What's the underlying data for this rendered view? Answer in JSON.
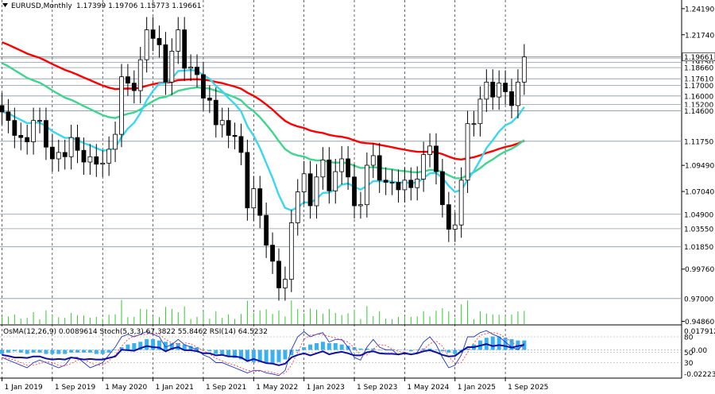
{
  "header": {
    "symbol": "EURUSD,Monthly",
    "ohlc": "1.17399 1.19706 1.15773 1.19661"
  },
  "indicators_label": "OsMA(12,26,9) 0.0089614  Stoch(5,3,3) 67.3822 55.8462  RSI(14) 64.5232",
  "colors": {
    "up": "#ffffff",
    "down": "#000000",
    "grid": "#c9c9c9",
    "ma_red": "#ff0000",
    "ma_green": "#3cd78c",
    "ma_cyan": "#39d7f0",
    "volume": "#32c832",
    "osma": "#39b0f0",
    "stoch_main": "#1e32c8",
    "stoch_signal": "#ff3c3c",
    "rsi": "#1010a0"
  },
  "chart_data": {
    "type": "candlestick",
    "y_range": [
      0.946,
      1.25
    ],
    "x_labels": [
      "1 Jan 2019",
      "1 Sep 2019",
      "1 May 2020",
      "1 Jan 2021",
      "1 Sep 2021",
      "1 May 2022",
      "1 Jan 2023",
      "1 Sep 2023",
      "1 May 2024",
      "1 Jan 2025",
      "1 Sep 2025"
    ],
    "x_label_months": [
      0,
      8,
      16,
      24,
      32,
      40,
      48,
      56,
      64,
      72,
      80
    ],
    "y_ticks": [
      "1.24190",
      "1.21740",
      "1.09490",
      "1.07040",
      "0.99760",
      "0.94860"
    ],
    "y_tick_values": [
      1.2419,
      1.2174,
      1.0949,
      1.0704,
      0.9976,
      0.9486
    ],
    "levels": [
      {
        "label": "1.19551",
        "value": 1.1955
      },
      {
        "label": "1.19150",
        "value": 1.1915
      },
      {
        "label": "1.18660",
        "value": 1.1866
      },
      {
        "label": "1.17610",
        "value": 1.1761
      },
      {
        "label": "1.17000",
        "value": 1.17
      },
      {
        "label": "1.16000",
        "value": 1.16
      },
      {
        "label": "1.15200",
        "value": 1.152
      },
      {
        "label": "1.14600",
        "value": 1.146
      },
      {
        "label": "1.11750",
        "value": 1.1175
      },
      {
        "label": "1.04900",
        "value": 1.049
      },
      {
        "label": "1.03550",
        "value": 1.0355
      },
      {
        "label": "1.01850",
        "value": 1.0185
      },
      {
        "label": "0.97000",
        "value": 0.97
      }
    ],
    "current_price": {
      "label": "1.19661",
      "value": 1.19661
    },
    "closes": [
      1.145,
      1.137,
      1.123,
      1.121,
      1.117,
      1.137,
      1.137,
      1.112,
      1.101,
      1.107,
      1.103,
      1.121,
      1.109,
      1.098,
      1.103,
      1.096,
      1.097,
      1.11,
      1.124,
      1.178,
      1.172,
      1.165,
      1.194,
      1.222,
      1.214,
      1.208,
      1.173,
      1.202,
      1.222,
      1.186,
      1.187,
      1.18,
      1.158,
      1.156,
      1.133,
      1.137,
      1.123,
      1.122,
      1.107,
      1.055,
      1.073,
      1.048,
      1.02,
      1.005,
      0.98,
      0.988,
      1.041,
      1.07,
      1.087,
      1.057,
      1.084,
      1.1,
      1.071,
      1.089,
      1.101,
      1.084,
      1.057,
      1.058,
      1.095,
      1.104,
      1.081,
      1.079,
      1.079,
      1.072,
      1.081,
      1.074,
      1.082,
      1.105,
      1.113,
      1.089,
      1.058,
      1.035,
      1.039,
      1.081,
      1.134,
      1.134,
      1.157,
      1.173,
      1.159,
      1.172,
      1.164,
      1.151,
      1.173,
      1.1966
    ],
    "volume_axis": {
      "value": 0.97
    },
    "osma": [
      -3,
      -2,
      -1,
      -2,
      -3,
      -2,
      -2,
      -3,
      -3,
      -3,
      -3,
      -2,
      -2,
      -2,
      -2,
      -3,
      -3,
      -2,
      0,
      2,
      4,
      5,
      6,
      8,
      8,
      7,
      6,
      5,
      5,
      4,
      3,
      2,
      0,
      -1,
      -3,
      -4,
      -5,
      -6,
      -7,
      -8,
      -9,
      -9,
      -10,
      -10,
      -9,
      -7,
      -4,
      -1,
      2,
      4,
      5,
      6,
      5,
      5,
      4,
      3,
      2,
      1,
      1,
      1,
      0,
      0,
      0,
      0,
      0,
      -1,
      0,
      1,
      1,
      0,
      -1,
      -2,
      -3,
      -2,
      1,
      4,
      7,
      9,
      10,
      10,
      9,
      8,
      7,
      7
    ],
    "stoch": [
      40,
      35,
      30,
      25,
      20,
      30,
      35,
      30,
      25,
      20,
      25,
      40,
      40,
      30,
      20,
      25,
      30,
      45,
      60,
      80,
      85,
      80,
      85,
      90,
      85,
      80,
      60,
      65,
      75,
      65,
      60,
      55,
      45,
      40,
      30,
      30,
      25,
      20,
      15,
      10,
      15,
      15,
      10,
      8,
      5,
      15,
      55,
      80,
      90,
      80,
      85,
      88,
      70,
      75,
      75,
      60,
      40,
      35,
      60,
      75,
      60,
      55,
      55,
      45,
      50,
      45,
      50,
      70,
      80,
      65,
      40,
      20,
      25,
      45,
      80,
      80,
      88,
      92,
      85,
      80,
      70,
      60,
      55,
      67
    ],
    "rsi": [
      45,
      43,
      40,
      40,
      39,
      42,
      42,
      38,
      36,
      37,
      36,
      40,
      38,
      36,
      37,
      36,
      36,
      39,
      42,
      55,
      54,
      53,
      58,
      62,
      60,
      59,
      52,
      57,
      60,
      54,
      54,
      52,
      48,
      48,
      44,
      45,
      42,
      42,
      40,
      33,
      37,
      33,
      29,
      28,
      25,
      28,
      40,
      45,
      48,
      44,
      48,
      52,
      46,
      49,
      51,
      48,
      44,
      44,
      50,
      52,
      48,
      47,
      47,
      46,
      48,
      46,
      48,
      52,
      54,
      50,
      45,
      42,
      43,
      52,
      60,
      60,
      63,
      66,
      62,
      64,
      62,
      59,
      62,
      64.5
    ],
    "sub_levels": [
      "80",
      "50",
      "30"
    ],
    "sub_scale": {
      "top": "0.0179123",
      "bottom": "-0.022238",
      "zero": "0.00"
    }
  }
}
